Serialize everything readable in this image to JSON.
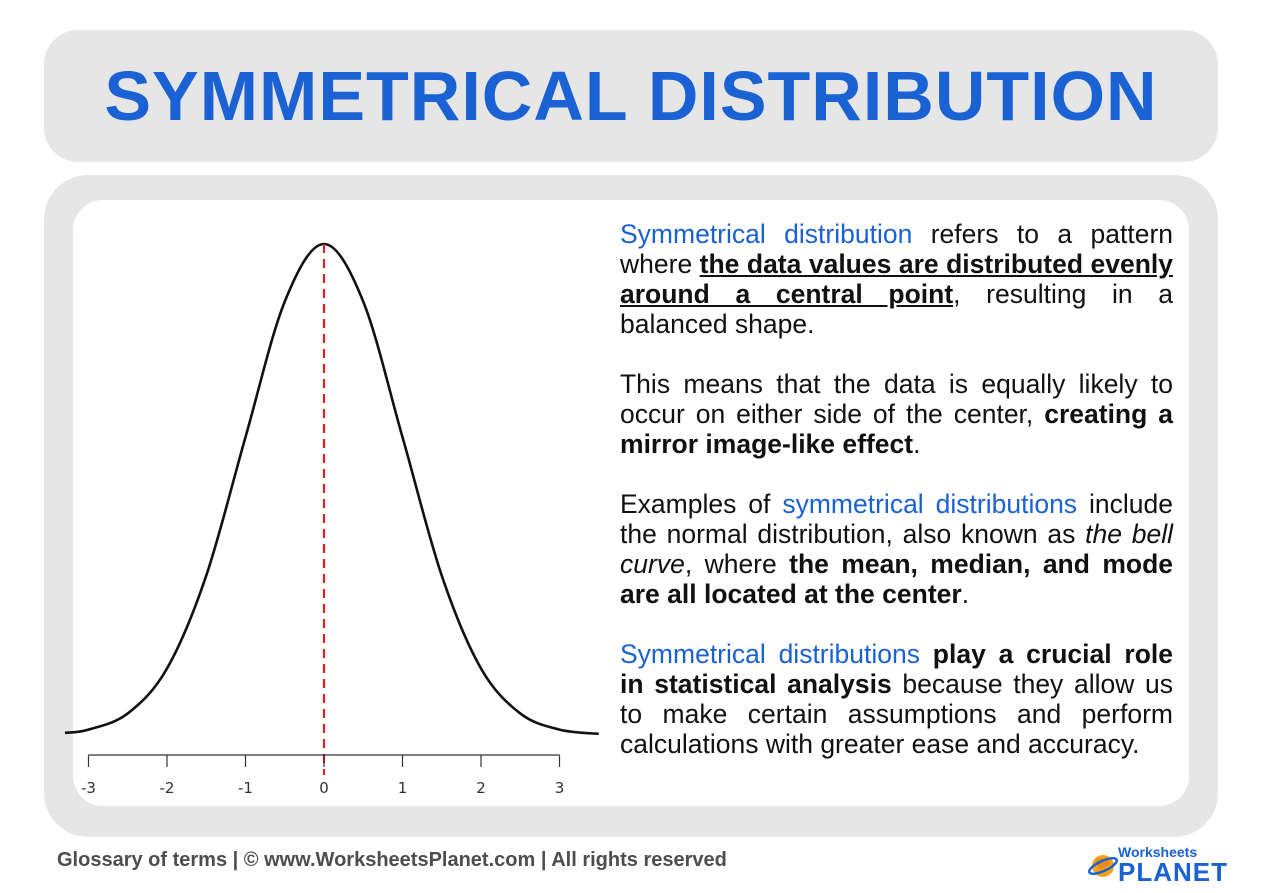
{
  "title": "SYMMETRICAL DISTRIBUTION",
  "paragraphs": {
    "p1": {
      "s1": "Symmetrical distribution",
      "s2": " refers to a pattern where ",
      "s3": "the data values are distributed evenly around a central point",
      "s4": ", resulting in a balanced shape."
    },
    "p2": {
      "s1": "This means that the data is equally likely to occur on either side of the center, ",
      "s2": "creating a mirror image-like effect",
      "s3": "."
    },
    "p3": {
      "s1": "Examples of ",
      "s2": "symmetrical distributions",
      "s3": " include the normal distribution, also known as ",
      "s4": "the bell curve",
      "s5": ", where ",
      "s6": "the mean, median, and mode are all located at the center",
      "s7": "."
    },
    "p4": {
      "s1": "Symmetrical distributions",
      "s2": " ",
      "s3": "play a crucial role in statistical analysis",
      "s4": " because they allow us to make certain assumptions and perform calculations with greater ease and accuracy."
    }
  },
  "footer": "Glossary of terms  |  © www.WorksheetsPlanet.com | All rights reserved",
  "logo": {
    "top": "Worksheets",
    "bottom": "PLANET"
  },
  "colors": {
    "accent": "#1a61d4",
    "panel": "#e6e6e6",
    "curve": "#111111",
    "center_line": "#e02020"
  },
  "chart_data": {
    "type": "line",
    "title": "",
    "xlabel": "",
    "ylabel": "",
    "xlim": [
      -3.3,
      3.55
    ],
    "xticks": [
      -3,
      -2,
      -1,
      0,
      1,
      2,
      3
    ],
    "xtick_labels": [
      "-3",
      "-2",
      "-1",
      "0",
      "1",
      "2",
      "3"
    ],
    "series": [
      {
        "x": [
          -3.3,
          -3.0,
          -2.5,
          -2.0,
          -1.5,
          -1.0,
          -0.5,
          0.0,
          0.5,
          1.0,
          1.5,
          2.0,
          2.5,
          3.0,
          3.5
        ],
        "y": [
          0.0017,
          0.0044,
          0.0175,
          0.054,
          0.1295,
          0.242,
          0.3521,
          0.3989,
          0.3521,
          0.242,
          0.1295,
          0.054,
          0.0175,
          0.0044,
          0.0009
        ]
      }
    ],
    "reference_line": {
      "x": 0,
      "style": "dashed",
      "color": "#e02020"
    },
    "grid": false
  }
}
